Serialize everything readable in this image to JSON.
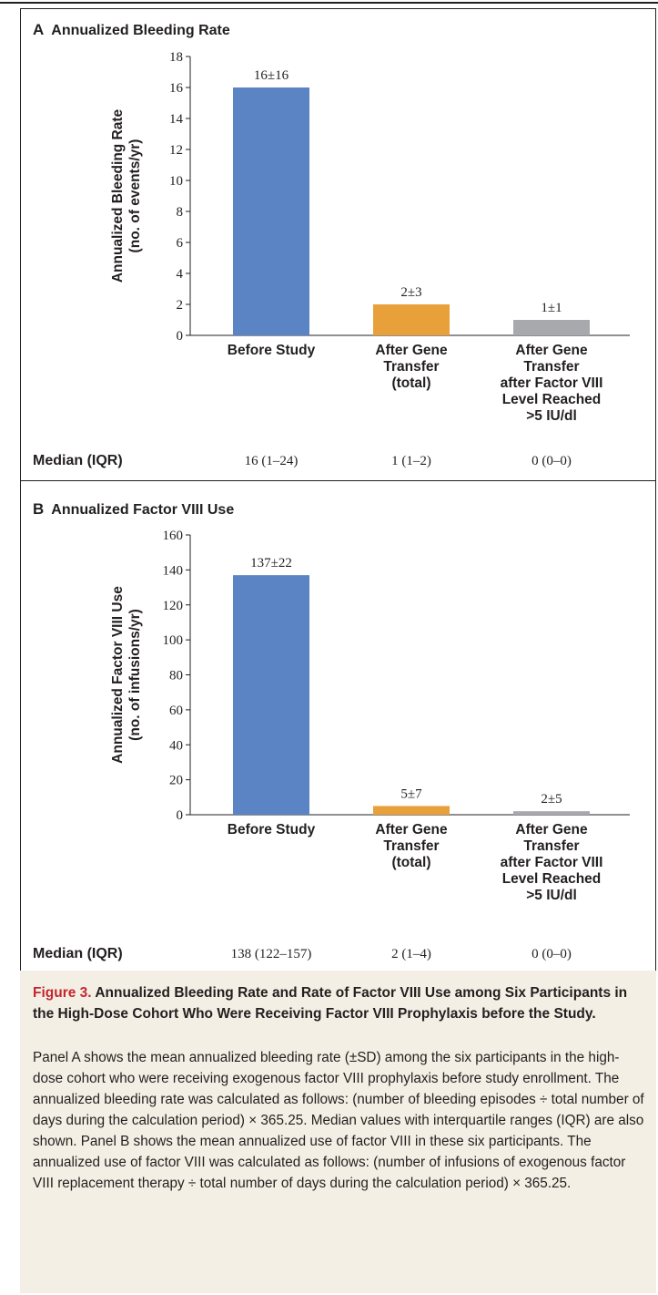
{
  "chart_data": [
    {
      "type": "bar",
      "panel_letter": "A",
      "title": "Annualized Bleeding Rate",
      "ylabel": "Annualized Bleeding Rate",
      "ylabel_sub": "(no. of events/yr)",
      "ylim": [
        0,
        18
      ],
      "yticks": [
        0,
        2,
        4,
        6,
        8,
        10,
        12,
        14,
        16,
        18
      ],
      "categories": [
        [
          "Before Study"
        ],
        [
          "After Gene",
          "Transfer",
          "(total)"
        ],
        [
          "After Gene",
          "Transfer",
          "after Factor VIII",
          "Level Reached",
          ">5 IU/dl"
        ]
      ],
      "values": [
        16,
        2,
        1
      ],
      "value_labels": [
        "16±16",
        "2±3",
        "1±1"
      ],
      "colors": [
        "#5b84c4",
        "#e8a13a",
        "#a7a9ac"
      ],
      "median_label": "Median (IQR)",
      "medians": [
        "16 (1–24)",
        "1 (1–2)",
        "0 (0–0)"
      ]
    },
    {
      "type": "bar",
      "panel_letter": "B",
      "title": "Annualized Factor VIII Use",
      "ylabel": "Annualized Factor VIII Use",
      "ylabel_sub": "(no. of infusions/yr)",
      "ylim": [
        0,
        160
      ],
      "yticks": [
        0,
        20,
        40,
        60,
        80,
        100,
        120,
        140,
        160
      ],
      "categories": [
        [
          "Before Study"
        ],
        [
          "After Gene",
          "Transfer",
          "(total)"
        ],
        [
          "After Gene",
          "Transfer",
          "after Factor VIII",
          "Level Reached",
          ">5 IU/dl"
        ]
      ],
      "values": [
        137,
        5,
        2
      ],
      "value_labels": [
        "137±22",
        "5±7",
        "2±5"
      ],
      "colors": [
        "#5b84c4",
        "#e8a13a",
        "#a7a9ac"
      ],
      "median_label": "Median (IQR)",
      "medians": [
        "138 (122–157)",
        "2 (1–4)",
        "0 (0–0)"
      ]
    }
  ],
  "caption": {
    "figure_label": "Figure 3.",
    "title": "Annualized Bleeding Rate and Rate of Factor VIII Use among Six Participants in the High-Dose Cohort Who Were Receiving Factor VIII Prophylaxis before the Study.",
    "body": "Panel A shows the mean annualized bleeding rate (±SD) among the six participants in the high-dose cohort who were receiving exogenous factor VIII prophylaxis before study enrollment. The annualized bleeding rate was calculated as follows: (number of bleeding episodes ÷ total number of days during the calculation period) × 365.25. Median values with interquartile ranges (IQR) are also shown. Panel B shows the mean annualized use of factor VIII in these six participants. The annualized use of factor VIII was calculated as follows: (number of infusions of exogenous factor VIII replacement therapy ÷ total number of days during the calculation period) × 365.25."
  }
}
